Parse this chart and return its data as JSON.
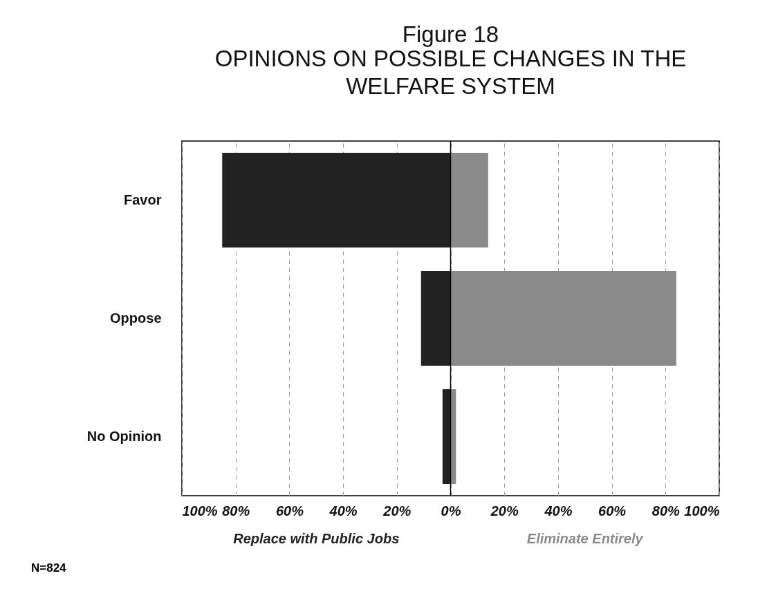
{
  "chart_data": {
    "type": "bar",
    "orientation": "horizontal",
    "stacked": true,
    "title": "Figure 18",
    "subtitle": "OPINIONS ON POSSIBLE CHANGES IN THE WELFARE SYSTEM",
    "categories": [
      "Favor",
      "Oppose",
      "No Opinion"
    ],
    "series": [
      {
        "name": "Replace with Public Jobs",
        "color": "#222222",
        "values": [
          -85,
          -11,
          -3
        ]
      },
      {
        "name": "Eliminate Entirely",
        "color": "#8a8a8a",
        "values": [
          14,
          84,
          2
        ]
      }
    ],
    "xlim": [
      -100,
      100
    ],
    "xticks": [
      {
        "value": -100,
        "label": "100%"
      },
      {
        "value": -80,
        "label": "80%"
      },
      {
        "value": -60,
        "label": "60%"
      },
      {
        "value": -40,
        "label": "40%"
      },
      {
        "value": -20,
        "label": "20%"
      },
      {
        "value": 0,
        "label": "0%"
      },
      {
        "value": 20,
        "label": "20%"
      },
      {
        "value": 40,
        "label": "40%"
      },
      {
        "value": 60,
        "label": "60%"
      },
      {
        "value": 80,
        "label": "80%"
      },
      {
        "value": 100,
        "label": "100%"
      }
    ],
    "ref_lines": [
      {
        "axis": "x",
        "value": 0,
        "color": "#000000"
      }
    ],
    "grid": "x",
    "annotations": [
      "N=824"
    ]
  }
}
